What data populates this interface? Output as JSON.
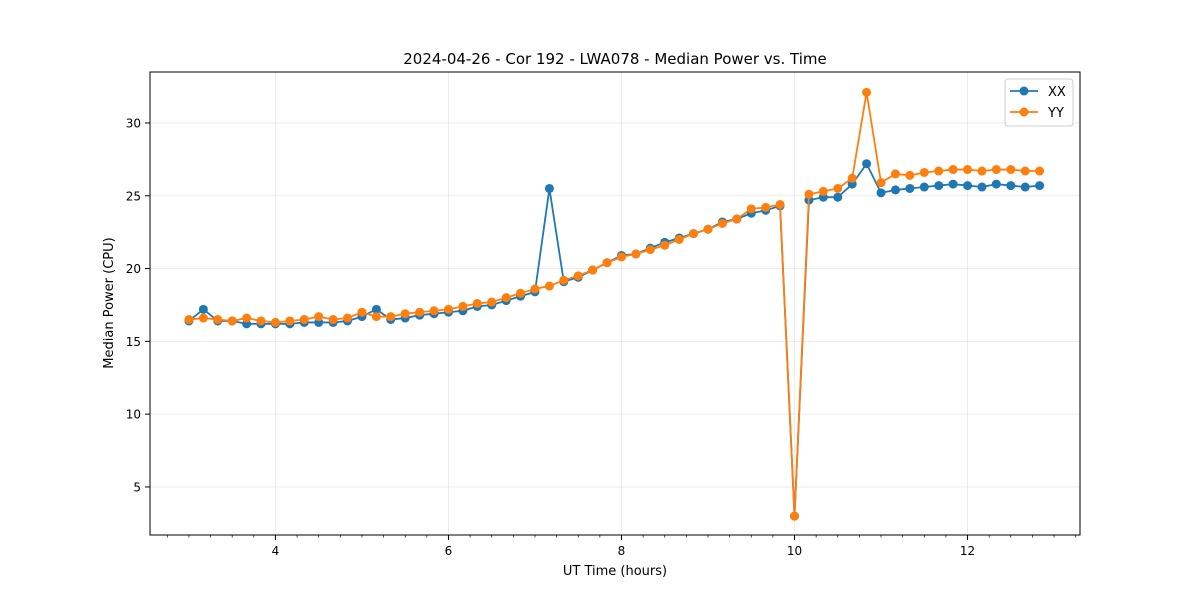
{
  "chart_data": {
    "type": "line",
    "title": "2024-04-26 - Cor 192 - LWA078 - Median Power vs. Time",
    "xlabel": "UT Time (hours)",
    "ylabel": "Median Power (CPU)",
    "xlim": [
      2.55,
      13.3
    ],
    "ylim": [
      1.7,
      33.5
    ],
    "xticks": [
      4,
      6,
      8,
      10,
      12
    ],
    "xtick_labels": [
      "4",
      "6",
      "8",
      "10",
      "12"
    ],
    "yticks": [
      5,
      10,
      15,
      20,
      25,
      30
    ],
    "ytick_labels": [
      "5",
      "10",
      "15",
      "20",
      "25",
      "30"
    ],
    "grid": true,
    "legend_position": "top-right",
    "x": [
      3.0,
      3.167,
      3.333,
      3.5,
      3.667,
      3.833,
      4.0,
      4.167,
      4.333,
      4.5,
      4.667,
      4.833,
      5.0,
      5.167,
      5.333,
      5.5,
      5.667,
      5.833,
      6.0,
      6.167,
      6.333,
      6.5,
      6.667,
      6.833,
      7.0,
      7.167,
      7.333,
      7.5,
      7.667,
      7.833,
      8.0,
      8.167,
      8.333,
      8.5,
      8.667,
      8.833,
      9.0,
      9.167,
      9.333,
      9.5,
      9.667,
      9.833,
      10.0,
      10.167,
      10.333,
      10.5,
      10.667,
      10.833,
      11.0,
      11.167,
      11.333,
      11.5,
      11.667,
      11.833,
      12.0,
      12.167,
      12.333,
      12.5,
      12.667,
      12.833
    ],
    "series": [
      {
        "name": "XX",
        "color": "#1f77b4",
        "values": [
          16.4,
          17.2,
          16.4,
          16.4,
          16.2,
          16.2,
          16.2,
          16.2,
          16.3,
          16.3,
          16.3,
          16.4,
          16.7,
          17.2,
          16.5,
          16.6,
          16.8,
          16.9,
          17.0,
          17.1,
          17.4,
          17.5,
          17.8,
          18.1,
          18.4,
          25.5,
          19.1,
          19.4,
          19.9,
          20.4,
          20.9,
          21.0,
          21.4,
          21.8,
          22.1,
          22.4,
          22.7,
          23.2,
          23.4,
          23.8,
          24.0,
          24.3,
          3.0,
          24.7,
          24.9,
          24.9,
          25.8,
          27.2,
          25.2,
          25.4,
          25.5,
          25.6,
          25.7,
          25.8,
          25.7,
          25.6,
          25.8,
          25.7,
          25.6,
          25.7
        ]
      },
      {
        "name": "YY",
        "color": "#ff7f0e",
        "values": [
          16.5,
          16.6,
          16.5,
          16.4,
          16.6,
          16.4,
          16.3,
          16.4,
          16.5,
          16.7,
          16.5,
          16.6,
          17.0,
          16.7,
          16.7,
          16.9,
          17.0,
          17.1,
          17.2,
          17.4,
          17.6,
          17.7,
          18.0,
          18.3,
          18.6,
          18.8,
          19.2,
          19.5,
          19.9,
          20.4,
          20.8,
          21.0,
          21.3,
          21.6,
          22.0,
          22.4,
          22.7,
          23.1,
          23.4,
          24.1,
          24.2,
          24.4,
          3.0,
          25.1,
          25.3,
          25.5,
          26.2,
          32.1,
          25.9,
          26.5,
          26.4,
          26.6,
          26.7,
          26.8,
          26.8,
          26.7,
          26.8,
          26.8,
          26.7,
          26.7
        ]
      }
    ]
  }
}
